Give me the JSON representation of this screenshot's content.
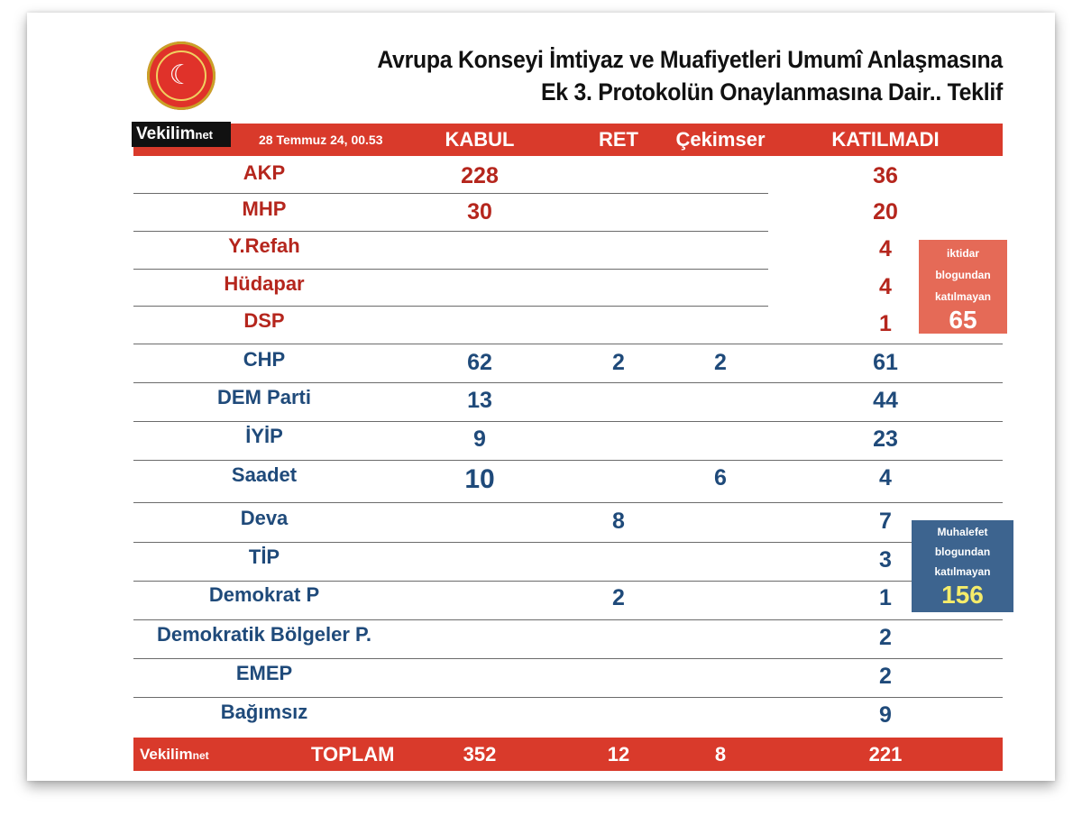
{
  "title": {
    "line1": "Avrupa Konseyi İmtiyaz ve Muafiyetleri Umumî Anlaşmasına",
    "line2": "Ek 3. Protokolün Onaylanmasına Dair.. Teklif"
  },
  "brand": {
    "name": "Vekilim",
    "suffix": "net"
  },
  "header": {
    "date": "28 Temmuz 24, 00.53",
    "kabul": "KABUL",
    "ret": "RET",
    "cekimser": "Çekimser",
    "katilmadi": "KATILMADI"
  },
  "rows": [
    {
      "party": "AKP",
      "kabul": "228",
      "ret": "",
      "cekimser": "",
      "katilmadi": "36"
    },
    {
      "party": "MHP",
      "kabul": "30",
      "ret": "",
      "cekimser": "",
      "katilmadi": "20"
    },
    {
      "party": "Y.Refah",
      "kabul": "",
      "ret": "",
      "cekimser": "",
      "katilmadi": "4"
    },
    {
      "party": "Hüdapar",
      "kabul": "",
      "ret": "",
      "cekimser": "",
      "katilmadi": "4"
    },
    {
      "party": "DSP",
      "kabul": "",
      "ret": "",
      "cekimser": "",
      "katilmadi": "1"
    },
    {
      "party": "CHP",
      "kabul": "62",
      "ret": "2",
      "cekimser": "2",
      "katilmadi": "61"
    },
    {
      "party": "DEM Parti",
      "kabul": "13",
      "ret": "",
      "cekimser": "",
      "katilmadi": "44"
    },
    {
      "party": "İYİP",
      "kabul": "9",
      "ret": "",
      "cekimser": "",
      "katilmadi": "23"
    },
    {
      "party": "Saadet",
      "kabul": "10",
      "ret": "",
      "cekimser": "6",
      "katilmadi": "4"
    },
    {
      "party": "Deva",
      "kabul": "",
      "ret": "8",
      "cekimser": "",
      "katilmadi": "7"
    },
    {
      "party": "TİP",
      "kabul": "",
      "ret": "",
      "cekimser": "",
      "katilmadi": "3"
    },
    {
      "party": "Demokrat P",
      "kabul": "",
      "ret": "2",
      "cekimser": "",
      "katilmadi": "1"
    },
    {
      "party": "Demokratik Bölgeler P.",
      "kabul": "",
      "ret": "",
      "cekimser": "",
      "katilmadi": "2"
    },
    {
      "party": "EMEP",
      "kabul": "",
      "ret": "",
      "cekimser": "",
      "katilmadi": "2"
    },
    {
      "party": "Bağımsız",
      "kabul": "",
      "ret": "",
      "cekimser": "",
      "katilmadi": "9"
    }
  ],
  "iktidar_box": {
    "line1": "iktidar",
    "line2": "blogundan",
    "line3": "katılmayan",
    "value": "65"
  },
  "muhalefet_box": {
    "line1": "Muhalefet",
    "line2": "blogundan",
    "line3": "katılmayan",
    "value": "156"
  },
  "footer": {
    "label": "TOPLAM",
    "kabul": "352",
    "ret": "12",
    "cekimser": "8",
    "katilmadi": "221"
  },
  "colors": {
    "accent_red": "#d93a2b",
    "govt_party": "#b5261d",
    "opposition_party": "#1f4a7a",
    "iktidar_box": "#e56a57",
    "muhalefet_box": "#3d648f",
    "muhalefet_number": "#f5ec6a"
  },
  "icons": {
    "logo": "tbmm-emblem-icon"
  }
}
